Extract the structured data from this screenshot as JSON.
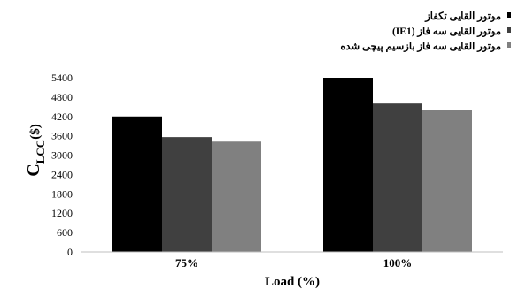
{
  "chart_data": {
    "type": "bar",
    "categories": [
      "75%",
      "100%"
    ],
    "series": [
      {
        "name": "موتور القایی تکفاز",
        "values": [
          4200,
          5400
        ],
        "color": "#000000"
      },
      {
        "name": "موتور القایی سه فاز (IE1)",
        "values": [
          3560,
          4600
        ],
        "color": "#404040"
      },
      {
        "name": "موتور القایی سه فاز بازسیم پیچی شده",
        "values": [
          3420,
          4400
        ],
        "color": "#808080"
      }
    ],
    "xlabel": "Load (%)",
    "ylabel": {
      "main": "C",
      "subscript": "LCC",
      "unit": "($)"
    },
    "ylim": [
      0,
      5400
    ],
    "yticks": [
      0,
      600,
      1200,
      1800,
      2400,
      3000,
      3600,
      4200,
      4800,
      5400
    ],
    "grid": false,
    "legend_position": "top-right"
  }
}
